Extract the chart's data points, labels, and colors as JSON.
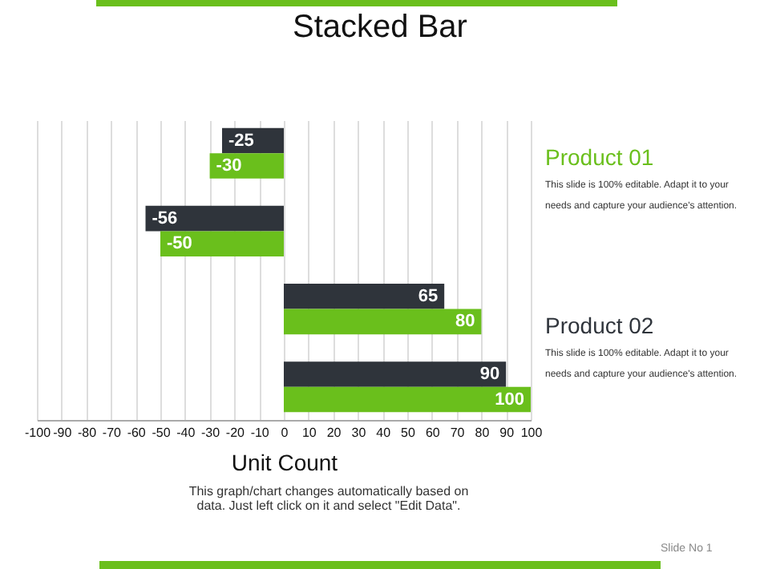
{
  "chart_data": {
    "type": "bar",
    "orientation": "horizontal",
    "title": "Stacked Bar",
    "xlabel": "Unit Count",
    "categories": [
      null,
      null,
      null,
      null
    ],
    "series": [
      {
        "color": "#2f343b",
        "values": [
          -25,
          -56,
          65,
          90
        ]
      },
      {
        "color": "#6abf1c",
        "values": [
          -30,
          -50,
          80,
          100
        ]
      }
    ],
    "xlim": [
      -100,
      100
    ],
    "xticks": [
      -100,
      -90,
      -80,
      -70,
      -60,
      -50,
      -40,
      -30,
      -20,
      -10,
      0,
      10,
      20,
      30,
      40,
      50,
      60,
      70,
      80,
      90,
      100
    ],
    "grid": "x",
    "data_labels": true,
    "annotations": [
      "Product 01",
      "This slide is 100% editable. Adapt it to your needs and capture your audience's attention.",
      "Product 02",
      "This slide is 100% editable. Adapt it to your needs and capture your audience's attention.",
      "This graph/chart changes automatically based on data. Just left click on it and select \"Edit Data\".",
      "Slide No 1"
    ]
  }
}
